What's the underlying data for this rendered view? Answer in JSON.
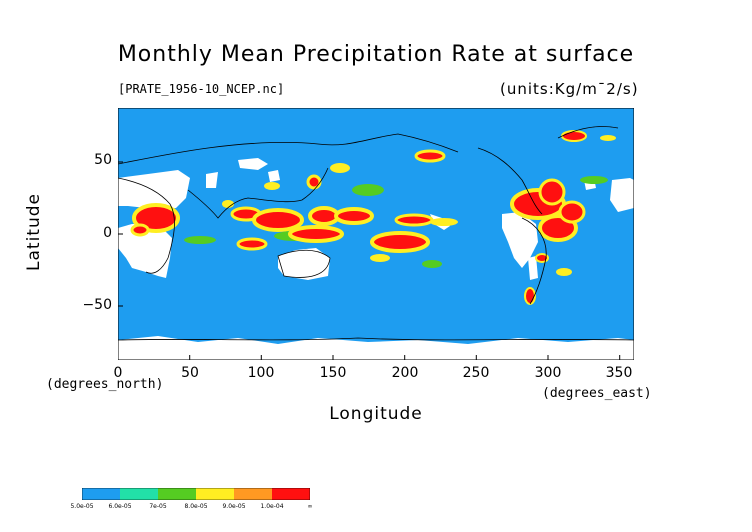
{
  "title": "Monthly Mean Precipitation Rate at surface",
  "file_label": "[PRATE_1956-10_NCEP.nc]",
  "units_label": "(units:Kg/m¯2/s)",
  "x_axis": {
    "label": "Longitude",
    "unit_label": "(degrees_east)",
    "ticks": [
      "0",
      "50",
      "100",
      "150",
      "200",
      "250",
      "300",
      "350"
    ]
  },
  "y_axis": {
    "label": "Latitude",
    "unit_label": "(degrees_north)",
    "ticks": [
      "50",
      "0",
      "−50"
    ]
  },
  "colorbar": {
    "labels": [
      "5.0e-05",
      "6.0e-05",
      "7e-05",
      "8.0e-05",
      "9.0e-05",
      "1.0e-04",
      "∞"
    ],
    "colors": [
      "#1e9df0",
      "#22e0a8",
      "#55cc22",
      "#ffee22",
      "#ff9922",
      "#ff1010"
    ]
  },
  "colors": {
    "ocean_background": "#1e9df0",
    "missing": "#ffffff",
    "coastline": "#000000"
  }
}
